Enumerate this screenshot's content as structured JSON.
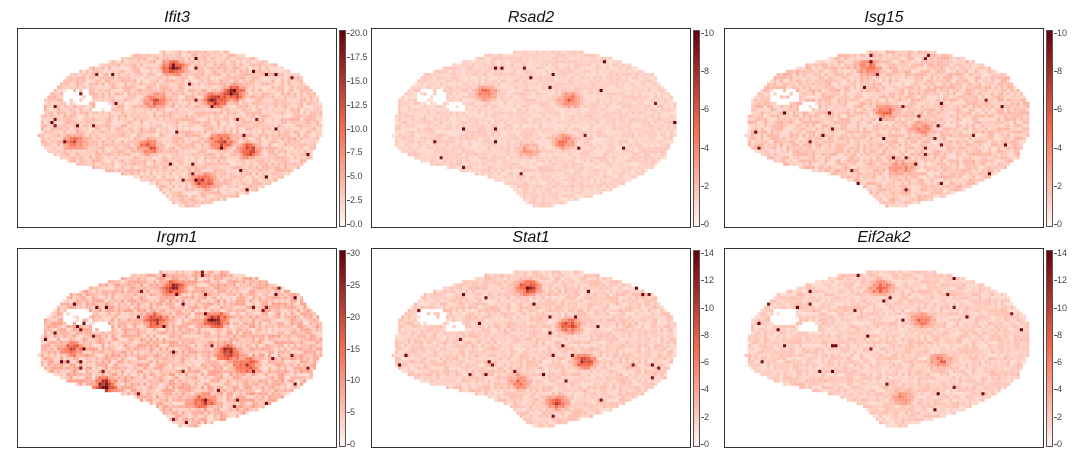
{
  "colormap": {
    "low": "#fff5f0",
    "mid": "#fb6a4a",
    "high": "#67000d"
  },
  "chart_data": [
    {
      "type": "heatmap",
      "title": "Ifit3",
      "colorbar": {
        "min": 0,
        "max": 20,
        "ticks": [
          "20.0",
          "17.5",
          "15.0",
          "12.5",
          "10.0",
          "7.5",
          "5.0",
          "2.5",
          "0.0"
        ]
      }
    },
    {
      "type": "heatmap",
      "title": "Rsad2",
      "colorbar": {
        "min": 0,
        "max": 10,
        "ticks": [
          "10",
          "8",
          "6",
          "4",
          "2",
          "0"
        ]
      }
    },
    {
      "type": "heatmap",
      "title": "Isg15",
      "colorbar": {
        "min": 0,
        "max": 10,
        "ticks": [
          "10",
          "8",
          "6",
          "4",
          "2",
          "0"
        ]
      }
    },
    {
      "type": "heatmap",
      "title": "Irgm1",
      "colorbar": {
        "min": 0,
        "max": 30,
        "ticks": [
          "30",
          "25",
          "20",
          "15",
          "10",
          "5",
          "0"
        ]
      }
    },
    {
      "type": "heatmap",
      "title": "Stat1",
      "colorbar": {
        "min": 0,
        "max": 14,
        "ticks": [
          "14",
          "12",
          "10",
          "8",
          "6",
          "4",
          "2",
          "0"
        ]
      }
    },
    {
      "type": "heatmap",
      "title": "Eif2ak2",
      "colorbar": {
        "min": 0,
        "max": 14,
        "ticks": [
          "14",
          "12",
          "10",
          "8",
          "6",
          "4",
          "2",
          "0"
        ]
      }
    }
  ]
}
